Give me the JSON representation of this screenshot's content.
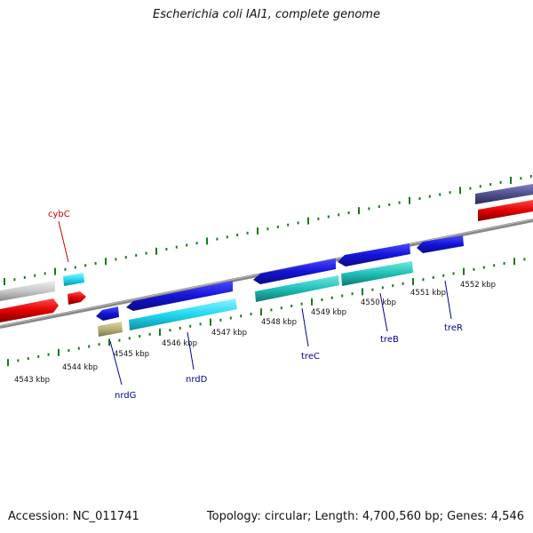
{
  "header": {
    "title": "Escherichia coli IAI1, complete genome"
  },
  "footer": {
    "accession": "Accession: NC_011741",
    "topology": "Topology: circular; Length: 4,700,560 bp; Genes: 4,546"
  },
  "scale_labels": [
    "4543 kbp",
    "4544 kbp",
    "4545 kbp",
    "4546 kbp",
    "4547 kbp",
    "4548 kbp",
    "4549 kbp",
    "4550 kbp",
    "4551 kbp",
    "4552 kbp"
  ],
  "genes": {
    "cybC": "cybC",
    "nrdG": "nrdG",
    "nrdD": "nrdD",
    "treC": "treC",
    "treB": "treB",
    "treR": "treR"
  },
  "colors": {
    "tick": "#1a7a1a",
    "backbone": "#888888",
    "cds_red": "#e00000",
    "cds_blue": "#1414d8",
    "cds_cyan": "#20d8f0",
    "cds_teal": "#20c8c0",
    "cds_gray": "#c8c8c8",
    "cds_olive": "#b8b078",
    "cds_purple": "#50508c",
    "label_red": "#cc0000",
    "label_blue": "#000099"
  }
}
